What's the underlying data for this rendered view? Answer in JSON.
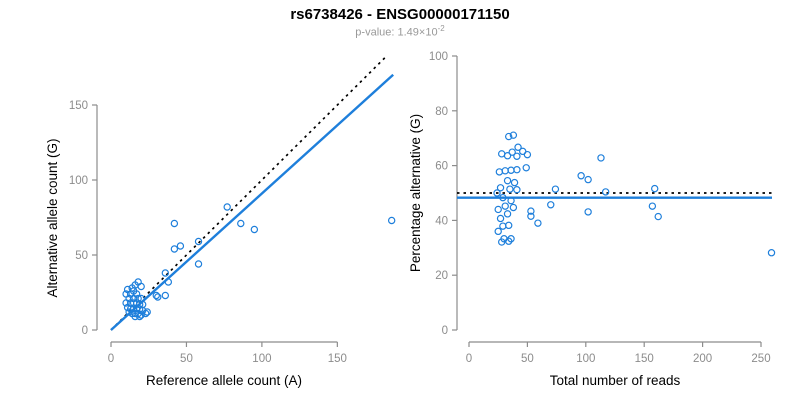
{
  "header": {
    "title": "rs6738426 - ENSG00000171150",
    "pvalue_text": "p-value: 1.49×10",
    "pvalue_exponent": "-2"
  },
  "colors": {
    "accent_blue": "#1e7fdb",
    "dotted_line": "#000000",
    "axis_gray": "#8c8c8c",
    "tick_label_gray": "#8c8c8c",
    "subtitle_gray": "#999999",
    "title_black": "#000000"
  },
  "chart_data": [
    {
      "type": "scatter",
      "name": "allele-counts-scatter",
      "xlabel": "Reference allele count (A)",
      "ylabel": "Alternative allele count (G)",
      "xticks": [
        0,
        50,
        100,
        150
      ],
      "yticks": [
        0,
        50,
        100,
        150
      ],
      "xlim": [
        0,
        190
      ],
      "ylim": [
        0,
        183
      ],
      "grid": false,
      "marker": "open-circle",
      "points": [
        [
          186,
          73
        ],
        [
          77,
          82
        ],
        [
          86,
          71
        ],
        [
          95,
          67
        ],
        [
          42,
          71
        ],
        [
          42,
          54
        ],
        [
          46,
          56
        ],
        [
          58,
          59
        ],
        [
          58,
          44
        ],
        [
          36,
          38
        ],
        [
          38,
          32
        ],
        [
          30,
          23
        ],
        [
          31,
          22
        ],
        [
          36,
          23
        ],
        [
          24,
          12
        ],
        [
          23,
          11
        ],
        [
          16,
          30
        ],
        [
          18,
          32
        ],
        [
          20,
          29
        ],
        [
          14,
          28
        ],
        [
          11,
          27
        ],
        [
          15,
          26
        ],
        [
          10,
          24
        ],
        [
          13,
          24
        ],
        [
          17,
          24
        ],
        [
          12,
          21
        ],
        [
          15,
          21
        ],
        [
          18,
          21
        ],
        [
          20,
          21
        ],
        [
          10,
          18
        ],
        [
          13,
          18
        ],
        [
          15,
          18
        ],
        [
          17,
          18
        ],
        [
          19,
          17
        ],
        [
          21,
          17
        ],
        [
          11,
          15
        ],
        [
          13,
          14
        ],
        [
          15,
          14
        ],
        [
          17,
          14
        ],
        [
          19,
          14
        ],
        [
          21,
          13
        ],
        [
          12,
          12
        ],
        [
          14,
          11
        ],
        [
          16,
          11
        ],
        [
          18,
          11
        ],
        [
          20,
          10
        ],
        [
          16,
          9
        ],
        [
          19,
          9
        ]
      ],
      "lines": [
        {
          "name": "expected-identity-line",
          "type": "abline",
          "slope": 1,
          "intercept": 0,
          "x_start": 0,
          "x_end": 183,
          "style": "dotted",
          "color": "#000000"
        },
        {
          "name": "fitted-regression-line",
          "type": "abline",
          "slope": 0.91,
          "intercept": 0,
          "x_start": 0,
          "x_end": 187,
          "style": "solid",
          "color": "#1e7fdb"
        }
      ]
    },
    {
      "type": "scatter",
      "name": "percentage-alternative-scatter",
      "xlabel": "Total number of reads",
      "ylabel": "Percentage alternative (G)",
      "xticks": [
        0,
        50,
        100,
        150,
        200,
        250
      ],
      "yticks": [
        0,
        20,
        40,
        60,
        80,
        100
      ],
      "xlim": [
        0,
        262
      ],
      "ylim": [
        0,
        100
      ],
      "grid": false,
      "marker": "open-circle",
      "points": [
        [
          259,
          28.2
        ],
        [
          159,
          51.6
        ],
        [
          157,
          45.2
        ],
        [
          162,
          41.4
        ],
        [
          113,
          62.8
        ],
        [
          96,
          56.3
        ],
        [
          102,
          54.9
        ],
        [
          117,
          50.4
        ],
        [
          102,
          43.1
        ],
        [
          74,
          51.4
        ],
        [
          70,
          45.7
        ],
        [
          53,
          43.4
        ],
        [
          53,
          41.5
        ],
        [
          59,
          39.0
        ],
        [
          36,
          33.3
        ],
        [
          34,
          32.4
        ],
        [
          46,
          65.2
        ],
        [
          50,
          64.0
        ],
        [
          49,
          59.2
        ],
        [
          42,
          66.7
        ],
        [
          38,
          71.1
        ],
        [
          41,
          63.4
        ],
        [
          34,
          70.6
        ],
        [
          37,
          64.9
        ],
        [
          41,
          58.5
        ],
        [
          33,
          63.6
        ],
        [
          36,
          58.3
        ],
        [
          39,
          53.8
        ],
        [
          41,
          51.2
        ],
        [
          28,
          64.3
        ],
        [
          31,
          58.1
        ],
        [
          33,
          54.5
        ],
        [
          35,
          51.4
        ],
        [
          36,
          47.2
        ],
        [
          38,
          44.7
        ],
        [
          26,
          57.7
        ],
        [
          27,
          51.9
        ],
        [
          29,
          48.3
        ],
        [
          31,
          45.2
        ],
        [
          33,
          42.4
        ],
        [
          34,
          38.2
        ],
        [
          24,
          50.0
        ],
        [
          25,
          44.0
        ],
        [
          27,
          40.7
        ],
        [
          29,
          37.9
        ],
        [
          30,
          33.3
        ],
        [
          25,
          36.0
        ],
        [
          28,
          32.1
        ]
      ],
      "lines": [
        {
          "name": "expected-50pct-line",
          "type": "hline",
          "y": 50,
          "style": "dotted",
          "color": "#000000"
        },
        {
          "name": "observed-mean-line",
          "type": "hline",
          "y": 48.3,
          "style": "solid",
          "color": "#1e7fdb"
        }
      ]
    }
  ]
}
